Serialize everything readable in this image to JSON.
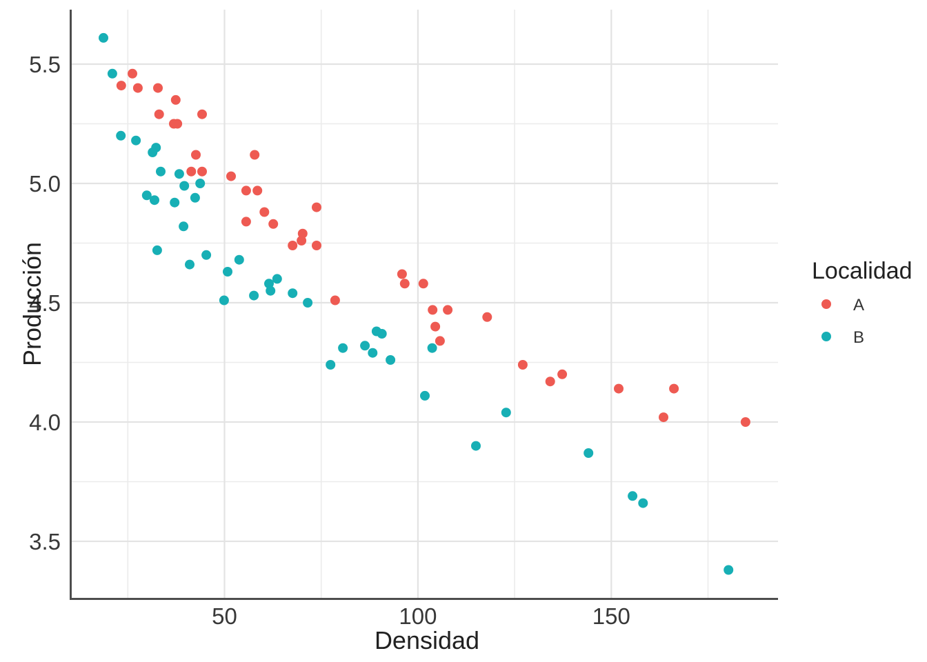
{
  "figure": {
    "kind": "scatterplot",
    "background_color": "#ffffff"
  },
  "chart_data": {
    "type": "scatter",
    "title": "",
    "xlabel": "Densidad",
    "ylabel": "Producción",
    "x_ticks": [
      50,
      100,
      150
    ],
    "x_tick_labels": [
      "50",
      "100",
      "150"
    ],
    "x_minor_ticks": [
      25,
      75,
      125,
      175
    ],
    "xlim": [
      10.3,
      193.1
    ],
    "y_ticks": [
      3.5,
      4.0,
      4.5,
      5.0,
      5.5
    ],
    "y_tick_labels": [
      "3.5",
      "4.0",
      "4.5",
      "5.0",
      "5.5"
    ],
    "y_minor_ticks": [
      3.75,
      4.25,
      4.75,
      5.25
    ],
    "ylim": [
      3.26,
      5.73
    ],
    "grid": true,
    "legend": {
      "title": "Localidad",
      "position": "right"
    },
    "series": [
      {
        "name": "A",
        "color": "#EE5A52",
        "points": [
          [
            26.2,
            5.46
          ],
          [
            23.3,
            5.41
          ],
          [
            27.6,
            5.4
          ],
          [
            32.8,
            5.4
          ],
          [
            37.4,
            5.35
          ],
          [
            33.1,
            5.29
          ],
          [
            44.2,
            5.29
          ],
          [
            36.9,
            5.25
          ],
          [
            37.8,
            5.25
          ],
          [
            42.6,
            5.12
          ],
          [
            57.8,
            5.12
          ],
          [
            41.4,
            5.05
          ],
          [
            44.2,
            5.05
          ],
          [
            51.7,
            5.03
          ],
          [
            58.5,
            4.97
          ],
          [
            55.6,
            4.97
          ],
          [
            60.3,
            4.88
          ],
          [
            55.6,
            4.84
          ],
          [
            62.6,
            4.83
          ],
          [
            73.8,
            4.9
          ],
          [
            70.2,
            4.79
          ],
          [
            69.9,
            4.76
          ],
          [
            67.6,
            4.74
          ],
          [
            73.8,
            4.74
          ],
          [
            78.6,
            4.51
          ],
          [
            95.9,
            4.62
          ],
          [
            96.6,
            4.58
          ],
          [
            101.4,
            4.58
          ],
          [
            103.8,
            4.47
          ],
          [
            107.7,
            4.47
          ],
          [
            117.9,
            4.44
          ],
          [
            104.5,
            4.4
          ],
          [
            105.7,
            4.34
          ],
          [
            127.1,
            4.24
          ],
          [
            134.2,
            4.17
          ],
          [
            137.3,
            4.2
          ],
          [
            151.9,
            4.14
          ],
          [
            166.2,
            4.14
          ],
          [
            163.5,
            4.02
          ],
          [
            184.7,
            4.0
          ]
        ]
      },
      {
        "name": "B",
        "color": "#17AFB5",
        "points": [
          [
            18.7,
            5.61
          ],
          [
            21.0,
            5.46
          ],
          [
            23.2,
            5.2
          ],
          [
            27.1,
            5.18
          ],
          [
            32.3,
            5.15
          ],
          [
            31.4,
            5.13
          ],
          [
            33.5,
            5.05
          ],
          [
            38.3,
            5.04
          ],
          [
            43.7,
            5.0
          ],
          [
            39.6,
            4.99
          ],
          [
            29.9,
            4.95
          ],
          [
            42.4,
            4.94
          ],
          [
            31.9,
            4.93
          ],
          [
            37.1,
            4.92
          ],
          [
            39.4,
            4.82
          ],
          [
            32.6,
            4.72
          ],
          [
            45.3,
            4.7
          ],
          [
            53.8,
            4.68
          ],
          [
            41.0,
            4.66
          ],
          [
            50.8,
            4.63
          ],
          [
            63.6,
            4.6
          ],
          [
            61.5,
            4.58
          ],
          [
            61.9,
            4.55
          ],
          [
            57.6,
            4.53
          ],
          [
            67.6,
            4.54
          ],
          [
            49.9,
            4.51
          ],
          [
            71.5,
            4.5
          ],
          [
            89.3,
            4.38
          ],
          [
            90.7,
            4.37
          ],
          [
            86.3,
            4.32
          ],
          [
            80.6,
            4.31
          ],
          [
            103.7,
            4.31
          ],
          [
            88.3,
            4.29
          ],
          [
            92.9,
            4.26
          ],
          [
            77.4,
            4.24
          ],
          [
            101.8,
            4.11
          ],
          [
            122.8,
            4.04
          ],
          [
            115.0,
            3.9
          ],
          [
            144.1,
            3.87
          ],
          [
            155.5,
            3.69
          ],
          [
            158.2,
            3.66
          ],
          [
            180.3,
            3.38
          ]
        ]
      }
    ]
  }
}
